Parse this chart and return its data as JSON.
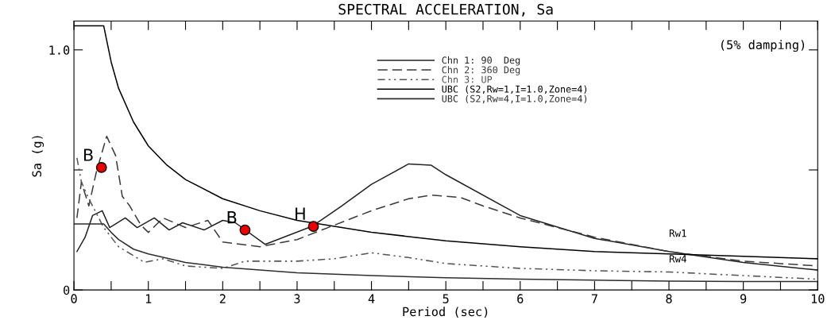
{
  "chart_data": {
    "type": "line",
    "title": "SPECTRAL ACCELERATION, Sa",
    "xlabel": "Period (sec)",
    "ylabel": "Sa (g)",
    "xlim": [
      0,
      10
    ],
    "ylim": [
      0,
      1.12
    ],
    "xticks": [
      0,
      {
        "value": 0.5,
        "label": null
      },
      1,
      {
        "value": 1.5,
        "label": null
      },
      2,
      {
        "value": 2.5,
        "label": null
      },
      3,
      {
        "value": 3.5,
        "label": null
      },
      4,
      {
        "value": 4.5,
        "label": null
      },
      5,
      {
        "value": 5.5,
        "label": null
      },
      6,
      {
        "value": 6.5,
        "label": null
      },
      7,
      {
        "value": 7.5,
        "label": null
      },
      8,
      {
        "value": 8.5,
        "label": null
      },
      9,
      {
        "value": 9.5,
        "label": null
      },
      10
    ],
    "yticks": [
      0,
      {
        "value": 0.5,
        "label": null
      },
      {
        "value": 1.0,
        "label": "1.0"
      }
    ],
    "grid": false,
    "legend": "top",
    "marker": "none",
    "series": [
      {
        "name": "Chn 1: 90  Deg",
        "color": "#222222",
        "line_style": "solid",
        "x": [
          0.04,
          0.15,
          0.25,
          0.38,
          0.48,
          0.69,
          0.85,
          1.08,
          1.28,
          1.46,
          1.75,
          2.0,
          2.17,
          2.57,
          3.2,
          3.6,
          4.0,
          4.5,
          4.8,
          5.0,
          6.0,
          7.0,
          8.0,
          9.0,
          10.0
        ],
        "values": [
          0.16,
          0.22,
          0.31,
          0.33,
          0.26,
          0.3,
          0.26,
          0.3,
          0.25,
          0.28,
          0.25,
          0.29,
          0.28,
          0.19,
          0.265,
          0.35,
          0.44,
          0.525,
          0.52,
          0.48,
          0.31,
          0.215,
          0.16,
          0.115,
          0.083
        ]
      },
      {
        "name": "Chn 2: 360 Deg",
        "color": "#3a3a3a",
        "line_style": "dashed",
        "x": [
          0.04,
          0.1,
          0.2,
          0.3,
          0.44,
          0.56,
          0.65,
          0.75,
          0.9,
          1.0,
          1.2,
          1.5,
          1.8,
          2.0,
          2.5,
          3.0,
          3.5,
          4.0,
          4.5,
          4.8,
          5.2,
          5.5,
          6.0,
          7.0,
          8.0,
          9.0,
          10.0
        ],
        "values": [
          0.3,
          0.45,
          0.35,
          0.49,
          0.64,
          0.56,
          0.39,
          0.35,
          0.27,
          0.24,
          0.3,
          0.26,
          0.29,
          0.2,
          0.18,
          0.21,
          0.27,
          0.33,
          0.38,
          0.395,
          0.385,
          0.35,
          0.3,
          0.22,
          0.16,
          0.12,
          0.1
        ]
      },
      {
        "name": "Chn 3: UP",
        "color": "#555555",
        "line_style": "dashdot",
        "x": [
          0.04,
          0.1,
          0.2,
          0.4,
          0.6,
          0.95,
          1.2,
          1.5,
          2.0,
          2.3,
          3.0,
          3.5,
          4.0,
          4.5,
          5.0,
          6.0,
          7.0,
          8.0,
          9.0,
          10.0
        ],
        "values": [
          0.55,
          0.45,
          0.38,
          0.26,
          0.18,
          0.115,
          0.13,
          0.1,
          0.09,
          0.12,
          0.12,
          0.13,
          0.155,
          0.135,
          0.11,
          0.09,
          0.08,
          0.075,
          0.06,
          0.045
        ]
      },
      {
        "name": "UBC (S2,Rw=1,I=1.0,Zone=4)",
        "color": "#000000",
        "line_style": "solid",
        "x": [
          0,
          0.4,
          0.5,
          0.6,
          0.8,
          1.0,
          1.25,
          1.5,
          2.0,
          2.5,
          3.0,
          4.0,
          5.0,
          6.0,
          7.0,
          8.0,
          9.0,
          10.0
        ],
        "values": [
          1.1,
          1.1,
          0.95,
          0.84,
          0.7,
          0.6,
          0.52,
          0.46,
          0.38,
          0.33,
          0.29,
          0.24,
          0.205,
          0.18,
          0.16,
          0.15,
          0.14,
          0.13
        ]
      },
      {
        "name": "UBC (S2,Rw=4,I=1.0,Zone=4)",
        "color": "#2e2e2e",
        "line_style": "solid",
        "x": [
          0,
          0.4,
          0.5,
          0.6,
          0.8,
          1.0,
          1.5,
          2.0,
          3.0,
          4.0,
          5.0,
          6.0,
          7.0,
          8.0,
          9.0,
          10.0
        ],
        "values": [
          0.275,
          0.275,
          0.24,
          0.21,
          0.17,
          0.15,
          0.115,
          0.095,
          0.072,
          0.06,
          0.051,
          0.045,
          0.041,
          0.037,
          0.035,
          0.035
        ]
      },
      {
        "type": "scatter",
        "color": "#ee0000",
        "marker": "circle",
        "x": [
          0.37,
          2.3,
          3.22
        ],
        "values": [
          0.51,
          0.25,
          0.265
        ]
      }
    ],
    "annotations": [
      "(5% damping)",
      "Rw1",
      "Rw4",
      {
        "text": "B",
        "x": 0.37,
        "y": 0.51
      },
      {
        "text": "B",
        "x": 2.3,
        "y": 0.25
      },
      {
        "text": "H",
        "x": 3.22,
        "y": 0.265
      }
    ]
  }
}
